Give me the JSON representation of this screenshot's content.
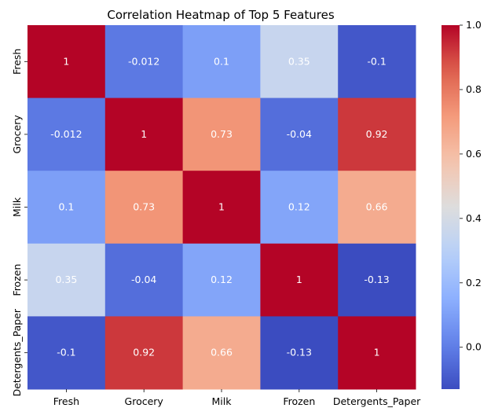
{
  "chart_data": {
    "type": "heatmap",
    "title": "Correlation Heatmap of Top 5 Features",
    "xlabel": "",
    "ylabel": "",
    "x_categories": [
      "Fresh",
      "Grocery",
      "Milk",
      "Frozen",
      "Detergents_Paper"
    ],
    "y_categories": [
      "Fresh",
      "Grocery",
      "Milk",
      "Frozen",
      "Detergents_Paper"
    ],
    "values": [
      [
        1,
        -0.012,
        0.1,
        0.35,
        -0.1
      ],
      [
        -0.012,
        1,
        0.73,
        -0.04,
        0.92
      ],
      [
        0.1,
        0.73,
        1,
        0.12,
        0.66
      ],
      [
        0.35,
        -0.04,
        0.12,
        1,
        -0.13
      ],
      [
        -0.1,
        0.92,
        0.66,
        -0.13,
        1
      ]
    ],
    "annotations": [
      [
        "1",
        "-0.012",
        "0.1",
        "0.35",
        "-0.1"
      ],
      [
        "-0.012",
        "1",
        "0.73",
        "-0.04",
        "0.92"
      ],
      [
        "0.1",
        "0.73",
        "1",
        "0.12",
        "0.66"
      ],
      [
        "0.35",
        "-0.04",
        "0.12",
        "1",
        "-0.13"
      ],
      [
        "-0.1",
        "0.92",
        "0.66",
        "-0.13",
        "1"
      ]
    ],
    "colormap": "coolwarm",
    "color_range": [
      -0.13,
      1.0
    ],
    "colorbar": {
      "ticks": [
        0.0,
        0.2,
        0.4,
        0.6,
        0.8,
        1.0
      ],
      "tick_labels": [
        "0.0",
        "0.2",
        "0.4",
        "0.6",
        "0.8",
        "1.0"
      ]
    },
    "grid": false,
    "legend": "colorbar-right"
  }
}
